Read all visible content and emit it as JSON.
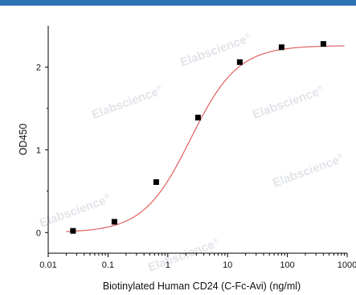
{
  "colors": {
    "top_bar": "#2e74b5",
    "curve": "#e06060",
    "point": "#000000",
    "axis": "#000000"
  },
  "watermark": {
    "text": "Elabscience",
    "symbol": "®"
  },
  "chart_data": {
    "type": "scatter",
    "title": "",
    "xlabel": "Biotinylated Human CD24 (C-Fc-Avi) (ng/ml)",
    "ylabel": "OD450",
    "x_scale": "log",
    "xlim": [
      0.01,
      1000
    ],
    "ylim": [
      -0.25,
      2.5
    ],
    "x_ticks": [
      {
        "value": 0.01,
        "label": "0.01"
      },
      {
        "value": 0.1,
        "label": "0.1"
      },
      {
        "value": 1,
        "label": "1"
      },
      {
        "value": 10,
        "label": "10"
      },
      {
        "value": 100,
        "label": "100"
      },
      {
        "value": 1000,
        "label": "1000"
      }
    ],
    "y_ticks": [
      {
        "value": 0,
        "label": "0"
      },
      {
        "value": 1,
        "label": "1"
      },
      {
        "value": 2,
        "label": "2"
      }
    ],
    "grid": false,
    "legend": "none",
    "points": [
      {
        "x": 0.026,
        "y": 0.02
      },
      {
        "x": 0.128,
        "y": 0.13
      },
      {
        "x": 0.64,
        "y": 0.61
      },
      {
        "x": 3.2,
        "y": 1.39
      },
      {
        "x": 16,
        "y": 2.06
      },
      {
        "x": 80,
        "y": 2.24
      },
      {
        "x": 400,
        "y": 2.28
      }
    ],
    "fit_curve": {
      "model": "4PL",
      "bottom": 0.0,
      "top": 2.26,
      "ec50": 2.4,
      "hill": 1.1
    }
  }
}
